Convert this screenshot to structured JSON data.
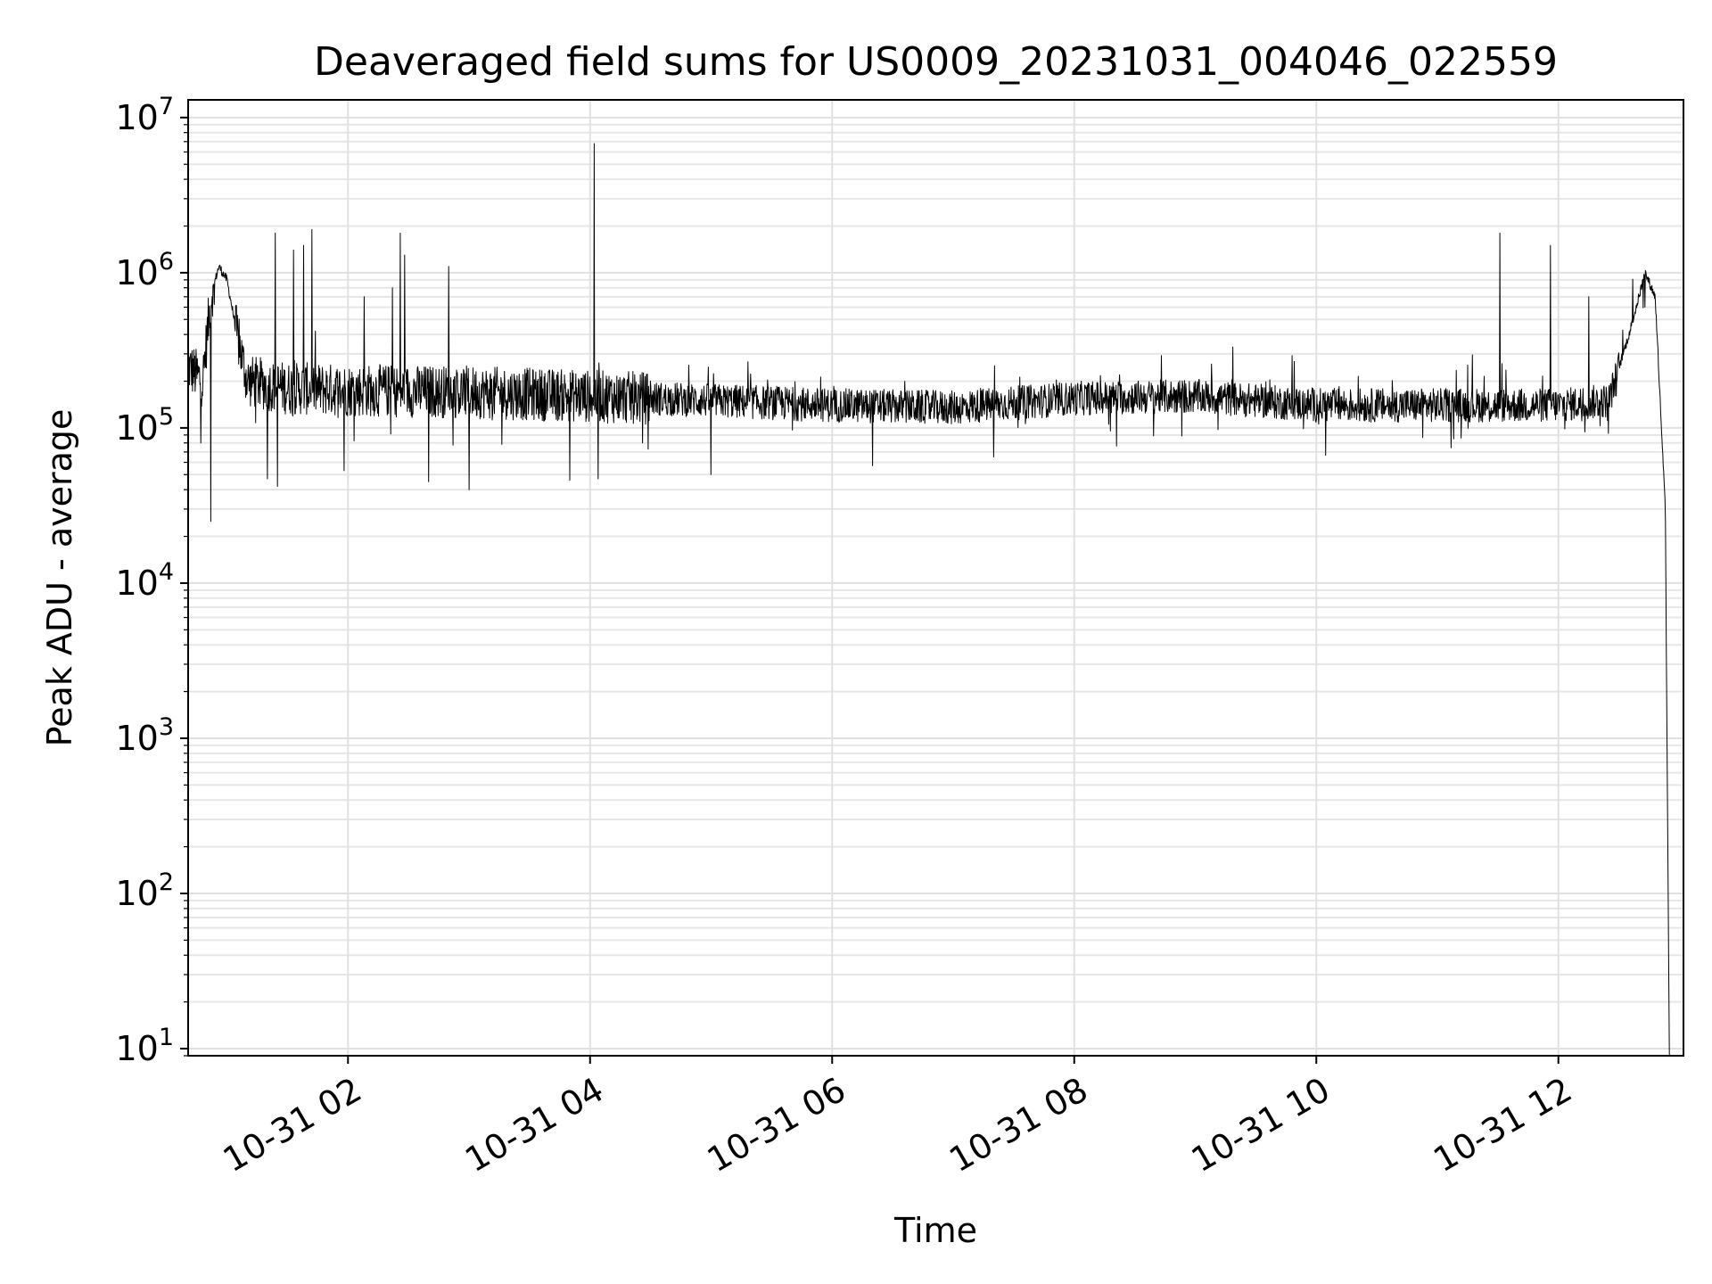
{
  "chart_data": {
    "type": "line",
    "title": "Deaveraged field sums for US0009_20231031_004046_022559",
    "xlabel": "Time",
    "ylabel": "Peak ADU - average",
    "yscale": "log",
    "ylim": [
      9,
      13000000
    ],
    "xlim": [
      "2023-10-31 00:40:46",
      "2023-10-31 13:02:00"
    ],
    "grid": true,
    "x_ticks": [
      {
        "value": "2023-10-31 02:00",
        "label": "10-31 02"
      },
      {
        "value": "2023-10-31 04:00",
        "label": "10-31 04"
      },
      {
        "value": "2023-10-31 06:00",
        "label": "10-31 06"
      },
      {
        "value": "2023-10-31 08:00",
        "label": "10-31 08"
      },
      {
        "value": "2023-10-31 10:00",
        "label": "10-31 10"
      },
      {
        "value": "2023-10-31 12:00",
        "label": "10-31 12"
      }
    ],
    "y_ticks": [
      {
        "value": 10,
        "base": "10",
        "exp": "1"
      },
      {
        "value": 100,
        "base": "10",
        "exp": "2"
      },
      {
        "value": 1000,
        "base": "10",
        "exp": "3"
      },
      {
        "value": 10000,
        "base": "10",
        "exp": "4"
      },
      {
        "value": 100000,
        "base": "10",
        "exp": "5"
      },
      {
        "value": 1000000,
        "base": "10",
        "exp": "6"
      },
      {
        "value": 10000000,
        "base": "10",
        "exp": "7"
      }
    ],
    "series": [
      {
        "color": "#000000",
        "points": [
          [
            "2023-10-31 00:40:46",
            250000
          ],
          [
            "2023-10-31 00:48:00",
            200000
          ],
          [
            "2023-10-31 00:52:00",
            700000
          ],
          [
            "2023-10-31 00:56:00",
            1100000
          ],
          [
            "2023-10-31 01:00:00",
            900000
          ],
          [
            "2023-10-31 01:05:00",
            400000
          ],
          [
            "2023-10-31 01:10:00",
            200000
          ],
          [
            "2023-10-31 01:30:00",
            180000
          ],
          [
            "2023-10-31 02:00:00",
            175000
          ],
          [
            "2023-10-31 03:00:00",
            170000
          ],
          [
            "2023-10-31 04:00:00",
            160000
          ],
          [
            "2023-10-31 05:00:00",
            150000
          ],
          [
            "2023-10-31 06:00:00",
            140000
          ],
          [
            "2023-10-31 07:00:00",
            135000
          ],
          [
            "2023-10-31 08:00:00",
            155000
          ],
          [
            "2023-10-31 09:00:00",
            160000
          ],
          [
            "2023-10-31 10:00:00",
            140000
          ],
          [
            "2023-10-31 11:00:00",
            140000
          ],
          [
            "2023-10-31 12:00:00",
            140000
          ],
          [
            "2023-10-31 12:25:00",
            150000
          ],
          [
            "2023-10-31 12:35:00",
            400000
          ],
          [
            "2023-10-31 12:43:00",
            1000000
          ],
          [
            "2023-10-31 12:48:00",
            700000
          ],
          [
            "2023-10-31 12:53:00",
            30000
          ],
          [
            "2023-10-31 12:55:00",
            9
          ]
        ],
        "spikes": [
          [
            "2023-10-31 01:24:00",
            1800000
          ],
          [
            "2023-10-31 01:33:00",
            1400000
          ],
          [
            "2023-10-31 01:38:00",
            1500000
          ],
          [
            "2023-10-31 01:42:00",
            1900000
          ],
          [
            "2023-10-31 02:08:00",
            700000
          ],
          [
            "2023-10-31 02:22:00",
            800000
          ],
          [
            "2023-10-31 02:26:00",
            1800000
          ],
          [
            "2023-10-31 02:28:00",
            1300000
          ],
          [
            "2023-10-31 02:50:00",
            1100000
          ],
          [
            "2023-10-31 04:02:00",
            6800000
          ],
          [
            "2023-10-31 11:31:00",
            1800000
          ],
          [
            "2023-10-31 11:56:00",
            1500000
          ],
          [
            "2023-10-31 12:15:00",
            700000
          ]
        ],
        "dips": [
          [
            "2023-10-31 00:47:00",
            80000
          ],
          [
            "2023-10-31 00:52:00",
            25000
          ],
          [
            "2023-10-31 01:20:00",
            47000
          ],
          [
            "2023-10-31 01:25:00",
            42000
          ],
          [
            "2023-10-31 01:58:00",
            53000
          ],
          [
            "2023-10-31 02:40:00",
            45000
          ],
          [
            "2023-10-31 03:00:00",
            40000
          ],
          [
            "2023-10-31 03:50:00",
            46000
          ],
          [
            "2023-10-31 04:04:00",
            47000
          ],
          [
            "2023-10-31 05:00:00",
            50000
          ],
          [
            "2023-10-31 06:20:00",
            57000
          ],
          [
            "2023-10-31 07:20:00",
            65000
          ]
        ]
      }
    ]
  }
}
